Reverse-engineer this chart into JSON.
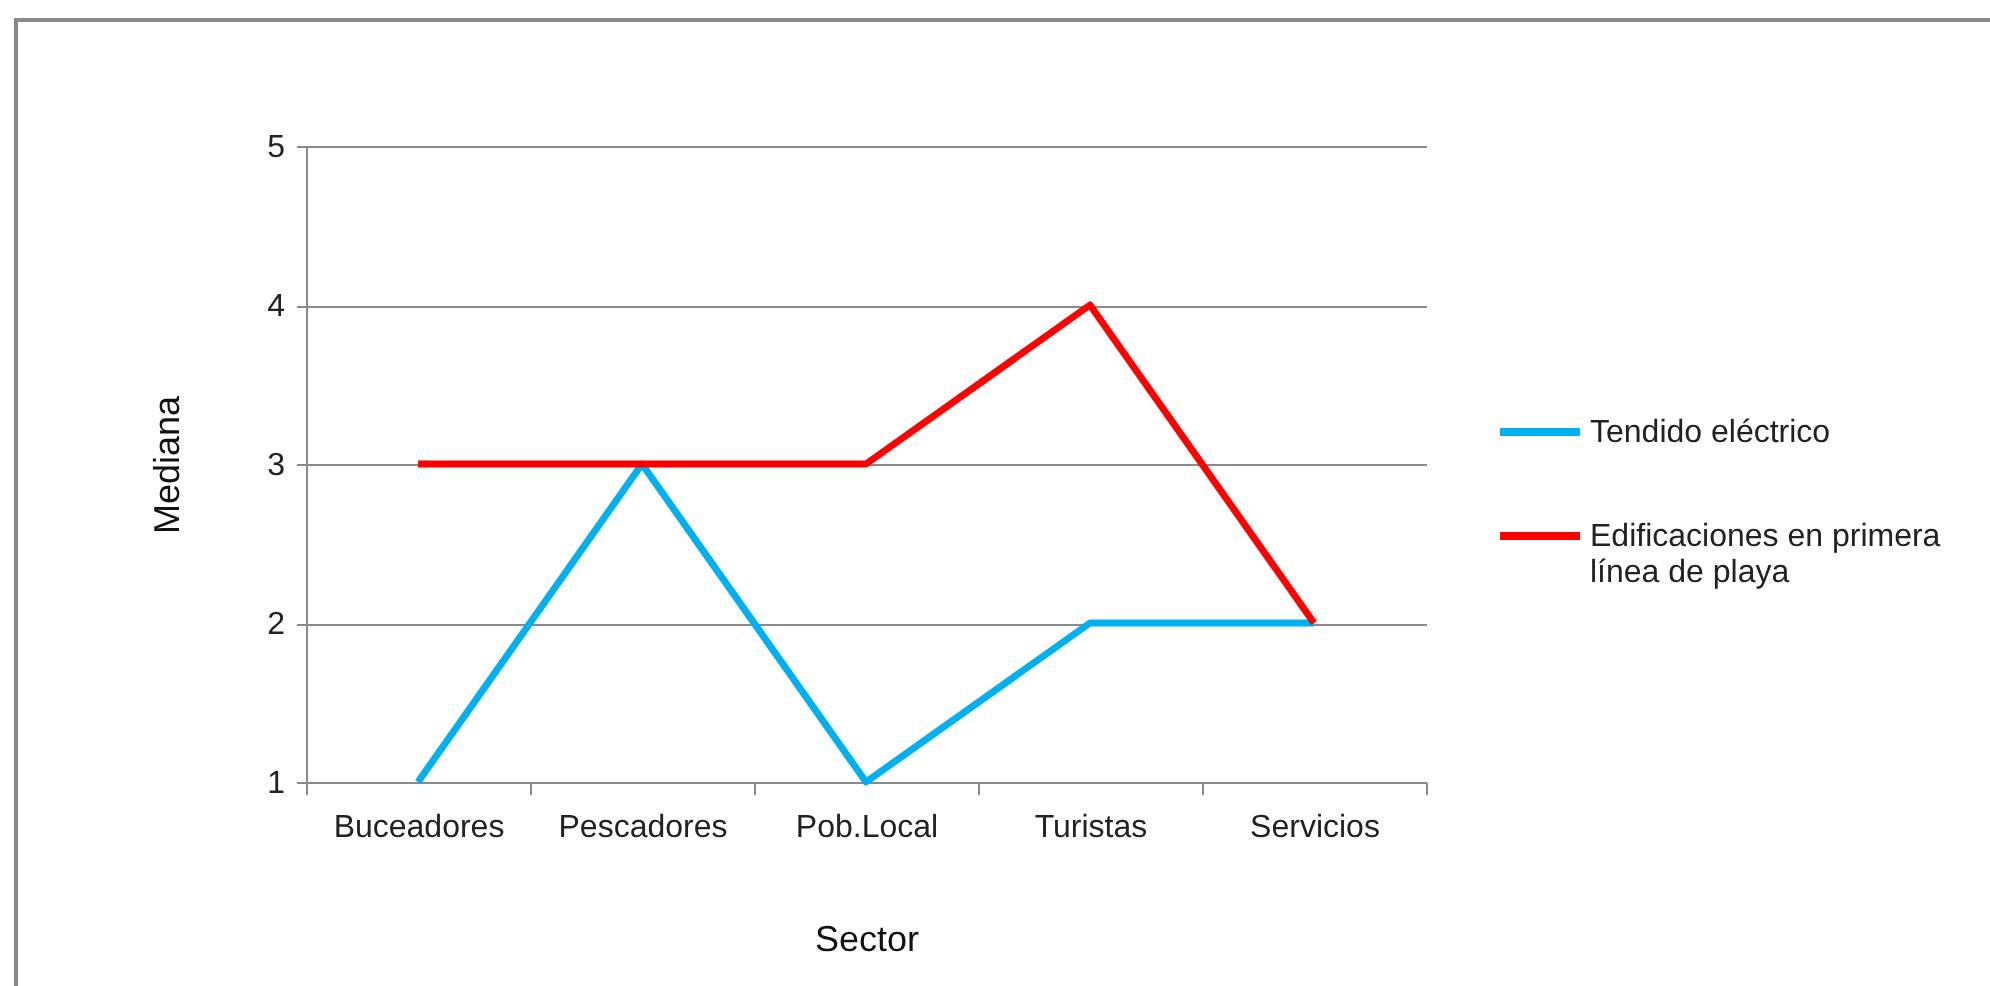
{
  "chart_data": {
    "type": "line",
    "xlabel": "Sector",
    "ylabel": "Mediana",
    "categories": [
      "Buceadores",
      "Pescadores",
      "Pob.Local",
      "Turistas",
      "Servicios"
    ],
    "series": [
      {
        "name": "Tendido eléctrico",
        "color": "#00b0f0",
        "values": [
          1,
          3,
          1,
          2,
          2
        ]
      },
      {
        "name": "Edificaciones en primera línea de playa",
        "color": "#ff0000",
        "values": [
          3,
          3,
          3,
          4,
          2
        ]
      }
    ],
    "ylim": [
      1,
      5
    ],
    "yticks": [
      1,
      2,
      3,
      4,
      5
    ],
    "grid": "y",
    "legend": "right"
  }
}
